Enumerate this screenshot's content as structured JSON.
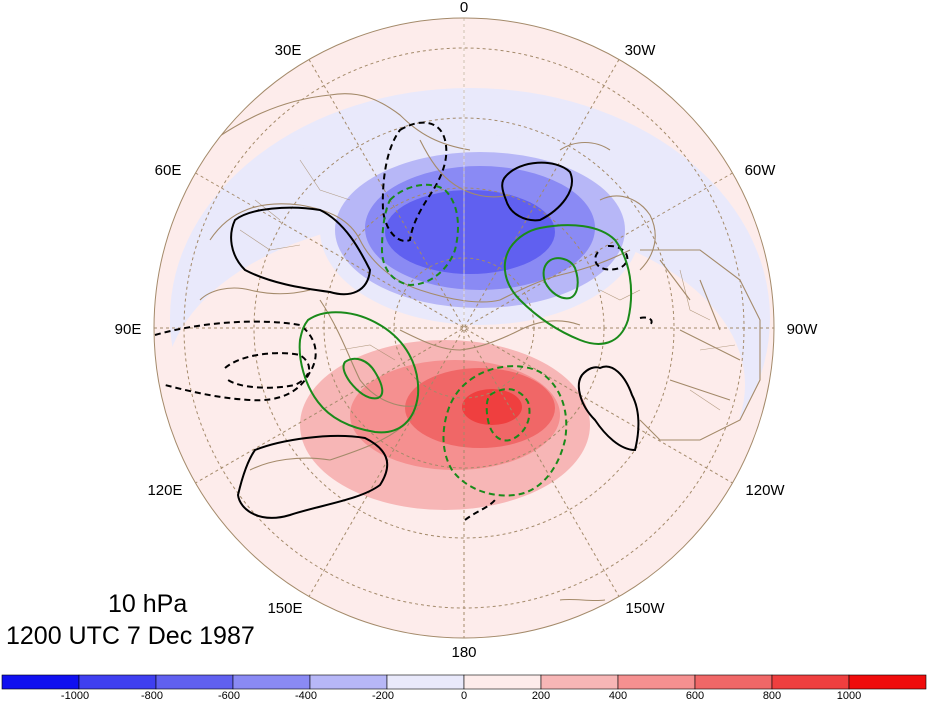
{
  "map": {
    "projection": "north-polar-stereographic",
    "longitude_labels": [
      "0",
      "30W",
      "60W",
      "90W",
      "120W",
      "150W",
      "180",
      "150E",
      "120E",
      "90E",
      "60E",
      "30E"
    ],
    "colors": {
      "ocean_coast": "#a48a6a",
      "graticule": "#a48a6a",
      "negative_contour": "#000000",
      "positive_contour": "#000000",
      "green_contour": "#1a8a1a"
    }
  },
  "title": {
    "level": "10 hPa",
    "time": "1200 UTC 7 Dec 1987"
  },
  "colorbar": {
    "tick_labels": [
      "-1000",
      "-800",
      "-600",
      "-400",
      "-200",
      "0",
      "200",
      "400",
      "600",
      "800",
      "1000"
    ],
    "colors": [
      "#1010f0",
      "#3f3ff0",
      "#6060f0",
      "#8a8af4",
      "#b7b7f7",
      "#e9e9fb",
      "#fdeceb",
      "#f7b6b6",
      "#f59090",
      "#f06767",
      "#ef3f3f",
      "#f00c0c"
    ]
  }
}
